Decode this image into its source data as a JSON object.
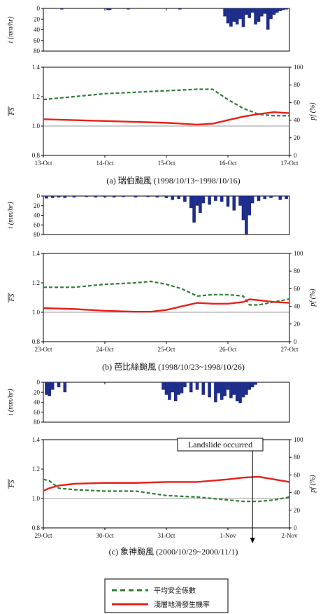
{
  "colors": {
    "rain_bar": "#1f2d8a",
    "fs_line": "#2e7d32",
    "pf_line": "#e8201b",
    "axis": "#000000",
    "reference_line": "#777777"
  },
  "chart_data": [
    {
      "type": "line",
      "caption": "(a) 瑞伯颱風 (1998/10/13~1998/10/16)",
      "x_tick_labels": [
        "13-Oct",
        "14-Oct",
        "15-Oct",
        "16-Oct",
        "17-Oct"
      ],
      "rain": {
        "ylabel": "i (mm/hr)",
        "yticks": [
          0,
          20,
          40,
          60,
          80
        ],
        "ylim": [
          0,
          80
        ],
        "inverted": true,
        "x": [
          0.3,
          1.05,
          1.08,
          1.38,
          2.22,
          2.95,
          3.0,
          3.05,
          3.1,
          3.15,
          3.2,
          3.25,
          3.3,
          3.35,
          3.4,
          3.45,
          3.5,
          3.55,
          3.6,
          3.65,
          3.7,
          3.75,
          3.8,
          3.85,
          3.9,
          3.95
        ],
        "values": [
          2,
          3,
          3,
          2,
          2,
          15,
          28,
          34,
          25,
          30,
          20,
          35,
          12,
          18,
          8,
          30,
          25,
          15,
          10,
          40,
          20,
          12,
          8,
          5,
          3,
          2
        ]
      },
      "left_axis": {
        "label": "FS",
        "ylim": [
          0.8,
          1.4
        ],
        "yticks": [
          "0.8",
          "1.0",
          "1.2",
          "1.4"
        ]
      },
      "right_axis": {
        "label": "pf (%)",
        "ylim": [
          0,
          100
        ],
        "yticks": [
          "0",
          "20",
          "40",
          "60",
          "80",
          "100"
        ]
      },
      "reference_fs": 1.0,
      "fs_series": {
        "x": [
          0,
          0.5,
          1.0,
          1.5,
          2.0,
          2.5,
          2.75,
          3.0,
          3.25,
          3.5,
          3.75,
          4.0
        ],
        "values": [
          1.18,
          1.2,
          1.22,
          1.23,
          1.24,
          1.25,
          1.25,
          1.18,
          1.12,
          1.08,
          1.07,
          1.07
        ]
      },
      "pf_series": {
        "x": [
          0,
          0.5,
          1.0,
          1.5,
          2.0,
          2.5,
          2.75,
          3.0,
          3.25,
          3.5,
          3.75,
          4.0
        ],
        "values": [
          41,
          40,
          39,
          38,
          37,
          35,
          36,
          40,
          44,
          47,
          49,
          48
        ]
      }
    },
    {
      "type": "line",
      "caption": "(b) 芭比絲颱風 (1998/10/23~1998/10/26)",
      "x_tick_labels": [
        "23-Oct",
        "24-Oct",
        "25-Oct",
        "26-Oct",
        "27-Oct"
      ],
      "rain": {
        "ylabel": "i (mm/hr)",
        "yticks": [
          0,
          20,
          40,
          60,
          80
        ],
        "ylim": [
          0,
          80
        ],
        "inverted": true,
        "x": [
          0.05,
          0.15,
          0.25,
          0.35,
          0.5,
          0.7,
          0.85,
          1.0,
          1.15,
          1.3,
          1.5,
          1.7,
          1.85,
          2.0,
          2.1,
          2.2,
          2.3,
          2.4,
          2.45,
          2.5,
          2.55,
          2.6,
          2.7,
          2.8,
          2.9,
          3.0,
          3.1,
          3.2,
          3.25,
          3.3,
          3.35,
          3.4,
          3.5,
          3.6,
          3.7,
          3.85,
          3.95
        ],
        "values": [
          5,
          4,
          3,
          4,
          3,
          2,
          3,
          2,
          3,
          2,
          3,
          2,
          3,
          4,
          8,
          6,
          12,
          25,
          55,
          20,
          35,
          15,
          18,
          10,
          12,
          22,
          30,
          20,
          50,
          80,
          40,
          15,
          10,
          6,
          4,
          8,
          6
        ]
      },
      "left_axis": {
        "label": "FS",
        "ylim": [
          0.8,
          1.4
        ],
        "yticks": [
          "0.8",
          "1.0",
          "1.2",
          "1.4"
        ]
      },
      "right_axis": {
        "label": "pf (%)",
        "ylim": [
          0,
          100
        ],
        "yticks": [
          "0",
          "20",
          "40",
          "60",
          "80",
          "100"
        ]
      },
      "reference_fs": 1.0,
      "fs_series": {
        "x": [
          0,
          0.5,
          1.0,
          1.5,
          1.75,
          2.0,
          2.25,
          2.5,
          2.75,
          3.0,
          3.25,
          3.35,
          3.5,
          3.75,
          4.0
        ],
        "values": [
          1.17,
          1.17,
          1.19,
          1.2,
          1.21,
          1.19,
          1.16,
          1.11,
          1.12,
          1.12,
          1.11,
          1.05,
          1.05,
          1.07,
          1.09
        ]
      },
      "pf_series": {
        "x": [
          0,
          0.5,
          1.0,
          1.5,
          1.75,
          2.0,
          2.25,
          2.5,
          2.75,
          3.0,
          3.25,
          3.35,
          3.5,
          3.75,
          4.0
        ],
        "values": [
          38,
          37,
          35,
          34,
          34,
          36,
          40,
          44,
          43,
          43,
          45,
          48,
          47,
          45,
          44
        ]
      }
    },
    {
      "type": "line",
      "caption": "(c) 象神颱風 (2000/10/29~2000/11/1)",
      "x_tick_labels": [
        "29-Oct",
        "30-Oct",
        "31-Oct",
        "1-Nov",
        "2-Nov"
      ],
      "rain": {
        "ylabel": "i (mm/hr)",
        "yticks": [
          0,
          20,
          40,
          60,
          80
        ],
        "ylim": [
          0,
          80
        ],
        "inverted": true,
        "x": [
          0.05,
          0.1,
          0.15,
          0.25,
          0.35,
          1.95,
          2.0,
          2.05,
          2.1,
          2.15,
          2.2,
          2.25,
          2.3,
          2.4,
          2.5,
          2.6,
          2.7,
          2.8,
          2.85,
          2.9,
          2.95,
          3.0,
          3.05,
          3.1,
          3.15,
          3.2,
          3.25,
          3.3,
          3.35,
          3.4,
          3.45
        ],
        "values": [
          25,
          28,
          15,
          10,
          20,
          15,
          25,
          35,
          20,
          38,
          25,
          22,
          10,
          20,
          15,
          25,
          30,
          40,
          22,
          35,
          28,
          15,
          32,
          25,
          38,
          42,
          30,
          25,
          15,
          10,
          5
        ]
      },
      "left_axis": {
        "label": "FS",
        "ylim": [
          0.8,
          1.4
        ],
        "yticks": [
          "0.8",
          "1.0",
          "1.2",
          "1.4"
        ]
      },
      "right_axis": {
        "label": "pf (%)",
        "ylim": [
          0,
          100
        ],
        "yticks": [
          "0",
          "20",
          "40",
          "60",
          "80",
          "100"
        ]
      },
      "reference_fs": 1.0,
      "fs_series": {
        "x": [
          0,
          0.1,
          0.25,
          0.5,
          1.0,
          1.5,
          2.0,
          2.5,
          3.0,
          3.25,
          3.5,
          3.75,
          4.0
        ],
        "values": [
          1.13,
          1.12,
          1.07,
          1.06,
          1.05,
          1.05,
          1.02,
          1.01,
          0.99,
          0.98,
          0.98,
          0.99,
          1.01
        ]
      },
      "pf_series": {
        "x": [
          0,
          0.1,
          0.25,
          0.5,
          1.0,
          1.5,
          2.0,
          2.5,
          3.0,
          3.25,
          3.5,
          3.75,
          4.0
        ],
        "values": [
          42,
          45,
          48,
          50,
          51,
          51,
          52,
          52,
          55,
          57,
          58,
          55,
          52
        ]
      },
      "annotation": {
        "text": "Landslide occurred",
        "x": 3.4
      }
    }
  ],
  "legend": [
    {
      "label": "平均安全係數",
      "series": "fs"
    },
    {
      "label": "淺層地滑發生機率",
      "series": "pf"
    }
  ]
}
